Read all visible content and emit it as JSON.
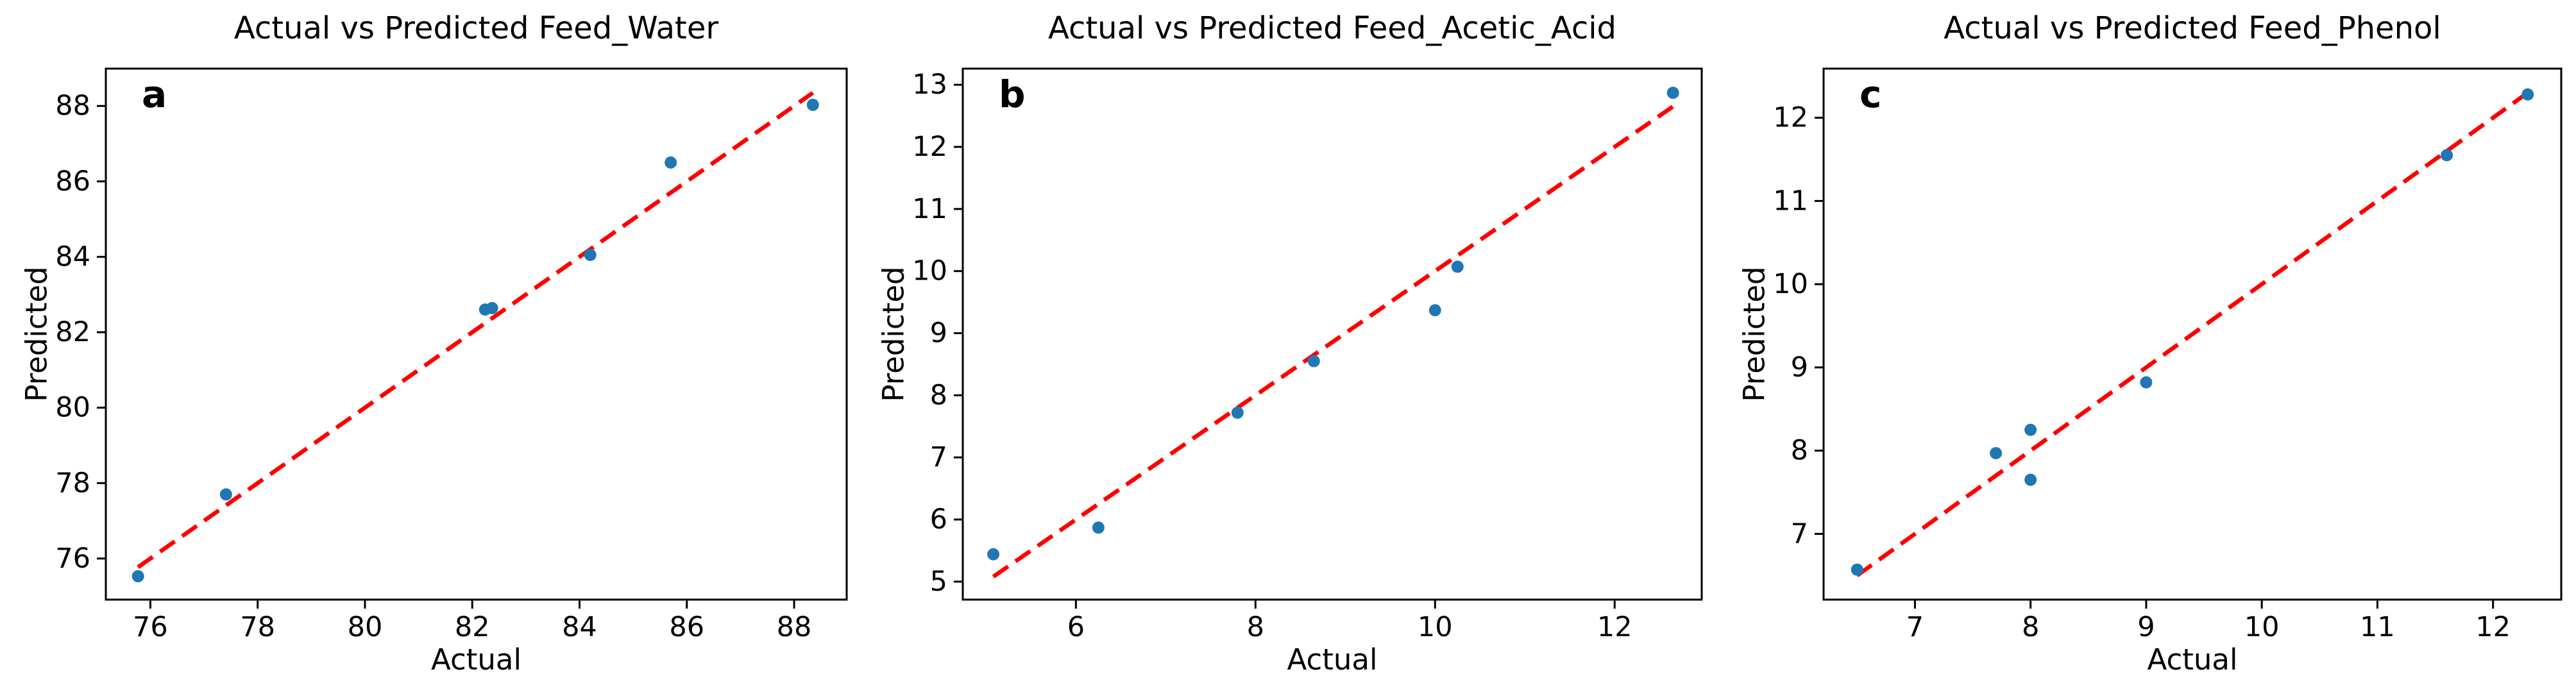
{
  "figure": {
    "background": "#ffffff",
    "text_color": "#000000"
  },
  "chart_data": [
    {
      "type": "scatter",
      "panel_letter": "a",
      "title": "Actual vs Predicted Feed_Water",
      "xlabel": "Actual",
      "ylabel": "Predicted",
      "x_ticks": [
        76,
        78,
        80,
        82,
        84,
        86,
        88
      ],
      "y_ticks": [
        76,
        78,
        80,
        82,
        84,
        86,
        88
      ],
      "xlim": [
        75.17,
        88.98
      ],
      "ylim": [
        74.91,
        88.99
      ],
      "grid": false,
      "legend": "none",
      "points": [
        [
          75.77,
          75.53
        ],
        [
          77.41,
          77.7
        ],
        [
          82.24,
          82.6
        ],
        [
          82.37,
          82.64
        ],
        [
          84.2,
          84.05
        ],
        [
          85.7,
          86.5
        ],
        [
          88.35,
          88.03
        ]
      ],
      "identity_line": {
        "from": [
          75.77,
          75.77
        ],
        "to": [
          88.35,
          88.35
        ],
        "style": "dashed",
        "color": "#ff0000"
      },
      "marker_color": "#1f77b4",
      "axis_color": "#000000"
    },
    {
      "type": "scatter",
      "panel_letter": "b",
      "title": "Actual vs Predicted Feed_Acetic_Acid",
      "xlabel": "Actual",
      "ylabel": "Predicted",
      "x_ticks": [
        6,
        8,
        10,
        12
      ],
      "y_ticks": [
        5,
        6,
        7,
        8,
        9,
        10,
        11,
        12,
        13
      ],
      "xlim": [
        4.74,
        12.97
      ],
      "ylim": [
        4.71,
        13.26
      ],
      "grid": false,
      "legend": "none",
      "points": [
        [
          5.08,
          5.44
        ],
        [
          6.25,
          5.87
        ],
        [
          7.8,
          7.72
        ],
        [
          8.65,
          8.55
        ],
        [
          10.0,
          9.37
        ],
        [
          10.25,
          10.07
        ],
        [
          12.65,
          12.87
        ]
      ],
      "identity_line": {
        "from": [
          5.08,
          5.08
        ],
        "to": [
          12.65,
          12.65
        ],
        "style": "dashed",
        "color": "#ff0000"
      },
      "marker_color": "#1f77b4",
      "axis_color": "#000000"
    },
    {
      "type": "scatter",
      "panel_letter": "c",
      "title": "Actual vs Predicted Feed_Phenol",
      "xlabel": "Actual",
      "ylabel": "Predicted",
      "x_ticks": [
        7,
        8,
        9,
        10,
        11,
        12
      ],
      "y_ticks": [
        7,
        8,
        9,
        10,
        11,
        12
      ],
      "xlim": [
        6.21,
        12.59
      ],
      "ylim": [
        6.21,
        12.59
      ],
      "grid": false,
      "legend": "none",
      "points": [
        [
          6.5,
          6.57
        ],
        [
          7.7,
          7.97
        ],
        [
          8.0,
          8.25
        ],
        [
          8.0,
          7.65
        ],
        [
          9.0,
          8.82
        ],
        [
          11.6,
          11.55
        ],
        [
          12.3,
          12.28
        ]
      ],
      "identity_line": {
        "from": [
          6.5,
          6.5
        ],
        "to": [
          12.3,
          12.3
        ],
        "style": "dashed",
        "color": "#ff0000"
      },
      "marker_color": "#1f77b4",
      "axis_color": "#000000"
    }
  ]
}
